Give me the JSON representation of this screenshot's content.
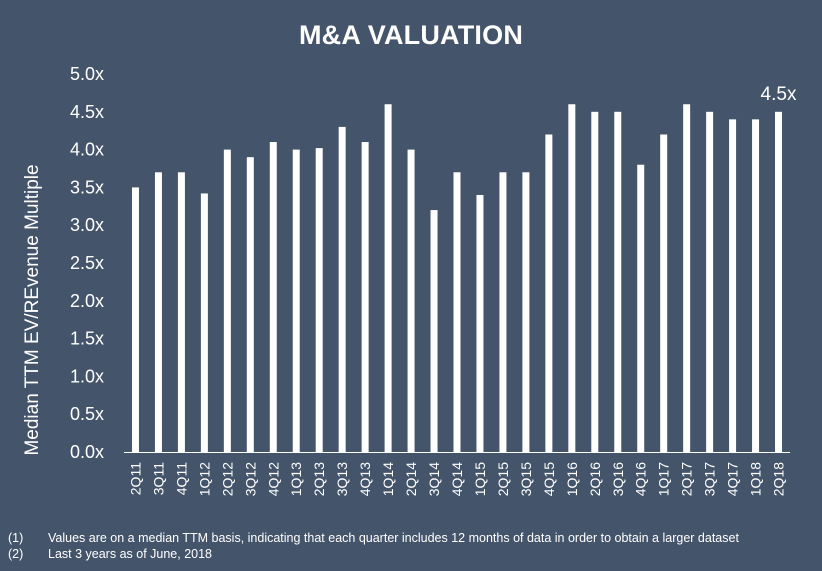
{
  "chart_data": {
    "type": "bar",
    "title": "M&A VALUATION",
    "ylabel": "Median TTM EV/REvenue Multiple",
    "xlabel": "",
    "ylim": [
      0,
      5
    ],
    "yticks": [
      "0.0x",
      "0.5x",
      "1.0x",
      "1.5x",
      "2.0x",
      "2.5x",
      "3.0x",
      "3.5x",
      "4.0x",
      "4.5x",
      "5.0x"
    ],
    "categories": [
      "2Q11",
      "3Q11",
      "4Q11",
      "1Q12",
      "2Q12",
      "3Q12",
      "4Q12",
      "1Q13",
      "2Q13",
      "3Q13",
      "4Q13",
      "1Q14",
      "2Q14",
      "3Q14",
      "4Q14",
      "1Q15",
      "2Q15",
      "3Q15",
      "4Q15",
      "1Q16",
      "2Q16",
      "3Q16",
      "4Q16",
      "1Q17",
      "2Q17",
      "3Q17",
      "4Q17",
      "1Q18",
      "2Q18"
    ],
    "values": [
      3.5,
      3.7,
      3.7,
      3.42,
      4.0,
      3.9,
      4.1,
      4.0,
      4.02,
      4.3,
      4.1,
      4.6,
      4.0,
      3.2,
      3.7,
      3.4,
      3.7,
      3.7,
      4.2,
      4.6,
      4.5,
      4.5,
      3.8,
      4.2,
      4.6,
      4.5,
      4.4,
      4.4,
      4.5
    ],
    "annotation": "4.5x",
    "grid": false,
    "bar_color": "#ffffff",
    "background": "#44546a"
  },
  "footnotes": [
    {
      "num": "(1)",
      "text": "Values are on a median TTM basis, indicating that each quarter includes 12 months of data in order to obtain a larger dataset"
    },
    {
      "num": "(2)",
      "text": "Last 3 years as of June, 2018"
    }
  ]
}
